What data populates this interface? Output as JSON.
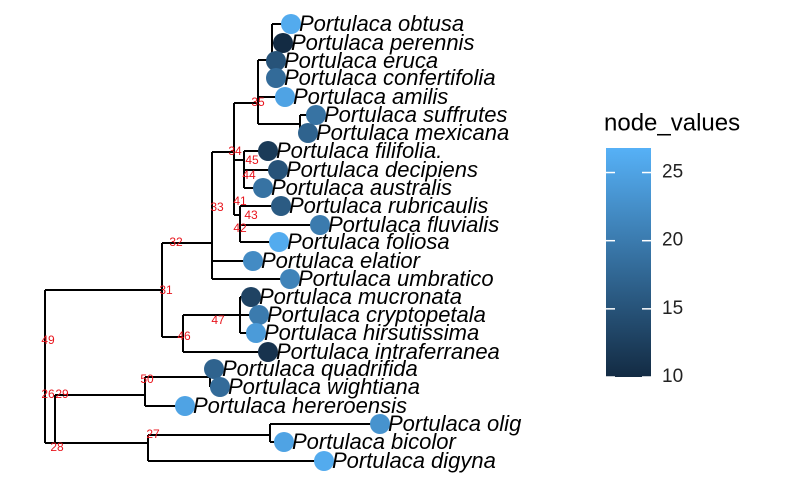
{
  "tips": [
    {
      "label": "Portulaca obtusa",
      "value": 26
    },
    {
      "label": "Portulaca perennis",
      "value": 10
    },
    {
      "label": "Portulaca eruca",
      "value": 15
    },
    {
      "label": "Portulaca confertifolia",
      "value": 18
    },
    {
      "label": "Portulaca amilis",
      "value": 25
    },
    {
      "label": "Portulaca suffrutes",
      "value": 19
    },
    {
      "label": "Portulaca mexicana",
      "value": 17
    },
    {
      "label": "Portulaca filifolia.",
      "value": 12
    },
    {
      "label": "Portulaca decipiens",
      "value": 15
    },
    {
      "label": "Portulaca australis",
      "value": 19
    },
    {
      "label": "Portulaca rubricaulis",
      "value": 16
    },
    {
      "label": "Portulaca fluvialis",
      "value": 20
    },
    {
      "label": "Portulaca foliosa",
      "value": 26
    },
    {
      "label": "Portulaca elatior",
      "value": 22
    },
    {
      "label": "Portulaca umbratico",
      "value": 21
    },
    {
      "label": "Portulaca mucronata",
      "value": 13
    },
    {
      "label": "Portulaca cryptopetala",
      "value": 20
    },
    {
      "label": "Portulaca hirsutissima",
      "value": 24
    },
    {
      "label": "Portulaca intraferranea",
      "value": 11
    },
    {
      "label": "Portulaca quadrifida",
      "value": 17
    },
    {
      "label": "Portulaca wightiana",
      "value": 18
    },
    {
      "label": "Portulaca hereroensis",
      "value": 25
    },
    {
      "label": "Portulaca olig",
      "value": 23
    },
    {
      "label": "Portulaca bicolor",
      "value": 25
    },
    {
      "label": "Portulaca digyna",
      "value": 26
    }
  ],
  "node_labels": [
    "49",
    "26",
    "29",
    "28",
    "31",
    "32",
    "33",
    "34",
    "35",
    "45",
    "44",
    "41",
    "43",
    "42",
    "46",
    "47",
    "50",
    "27"
  ],
  "legend": {
    "title": "node_values",
    "ticks": [
      10,
      15,
      20,
      25
    ],
    "limits": [
      10,
      26.8
    ],
    "low_color": "#132B43",
    "high_color": "#56B1F7"
  }
}
